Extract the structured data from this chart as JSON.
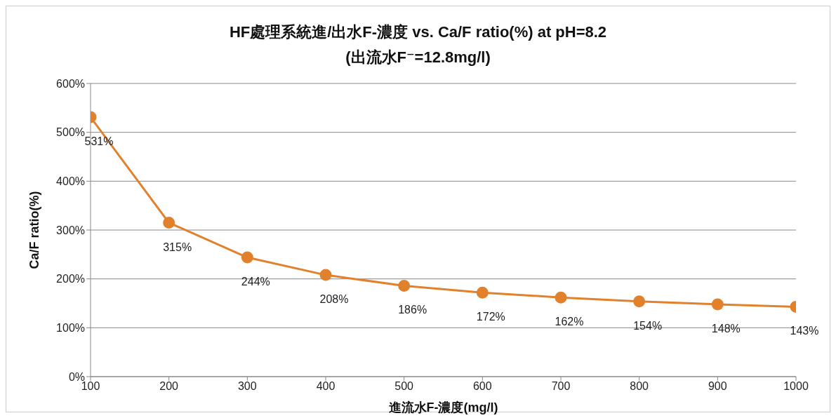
{
  "chart_data": {
    "type": "line",
    "title": "HF處理系統進/出水F-濃度 vs. Ca/F ratio(%) at pH=8.2",
    "subtitle": "(出流水F⁻=12.8mg/l)",
    "xlabel": "進流水F-濃度(mg/l)",
    "ylabel": "Ca/F ratio(%)",
    "x": [
      100,
      200,
      300,
      400,
      500,
      600,
      700,
      800,
      900,
      1000
    ],
    "series": [
      {
        "color": "#e1812c",
        "values": [
          531,
          315,
          244,
          208,
          186,
          172,
          162,
          154,
          148,
          143
        ],
        "value_labels": [
          "531%",
          "315%",
          "244%",
          "208%",
          "186%",
          "172%",
          "162%",
          "154%",
          "148%",
          "143%"
        ]
      }
    ],
    "xlim": [
      100,
      1000
    ],
    "xticks": [
      100,
      200,
      300,
      400,
      500,
      600,
      700,
      800,
      900,
      1000
    ],
    "ylim": [
      0,
      600
    ],
    "yticks": [
      {
        "value": 0,
        "label": "0%"
      },
      {
        "value": 100,
        "label": "100%"
      },
      {
        "value": 200,
        "label": "200%"
      },
      {
        "value": 300,
        "label": "300%"
      },
      {
        "value": 400,
        "label": "400%"
      },
      {
        "value": 500,
        "label": "500%"
      },
      {
        "value": 600,
        "label": "600%"
      }
    ],
    "grid": "y",
    "marker": "circle",
    "line_style": "solid",
    "legend": false
  }
}
